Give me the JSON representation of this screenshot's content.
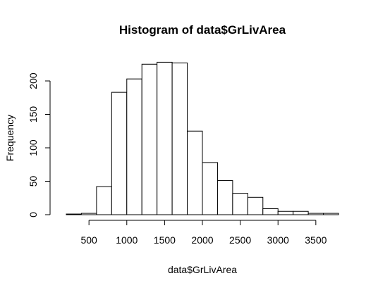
{
  "chart_data": {
    "type": "bar",
    "title": "Histogram of data$GrLivArea",
    "xlabel": "data$GrLivArea",
    "ylabel": "Frequency",
    "bins": [
      {
        "x0": 200,
        "x1": 400,
        "count": 1
      },
      {
        "x0": 400,
        "x1": 600,
        "count": 2
      },
      {
        "x0": 600,
        "x1": 800,
        "count": 42
      },
      {
        "x0": 800,
        "x1": 1000,
        "count": 183
      },
      {
        "x0": 1000,
        "x1": 1200,
        "count": 203
      },
      {
        "x0": 1200,
        "x1": 1400,
        "count": 225
      },
      {
        "x0": 1400,
        "x1": 1600,
        "count": 228
      },
      {
        "x0": 1600,
        "x1": 1800,
        "count": 227
      },
      {
        "x0": 1800,
        "x1": 2000,
        "count": 125
      },
      {
        "x0": 2000,
        "x1": 2200,
        "count": 78
      },
      {
        "x0": 2200,
        "x1": 2400,
        "count": 51
      },
      {
        "x0": 2400,
        "x1": 2600,
        "count": 32
      },
      {
        "x0": 2600,
        "x1": 2800,
        "count": 26
      },
      {
        "x0": 2800,
        "x1": 3000,
        "count": 9
      },
      {
        "x0": 3000,
        "x1": 3200,
        "count": 5
      },
      {
        "x0": 3200,
        "x1": 3400,
        "count": 5
      },
      {
        "x0": 3400,
        "x1": 3600,
        "count": 2
      },
      {
        "x0": 3600,
        "x1": 3800,
        "count": 2
      }
    ],
    "xlim": [
      200,
      3800
    ],
    "ylim": [
      0,
      228
    ],
    "x_ticks": [
      500,
      1000,
      1500,
      2000,
      2500,
      3000,
      3500
    ],
    "x_tick_labels": [
      "500",
      "1000",
      "1500",
      "2000",
      "2500",
      "3000",
      "3500"
    ],
    "y_ticks": [
      0,
      50,
      100,
      150,
      200
    ],
    "y_tick_labels": [
      "0",
      "50",
      "100",
      "150",
      "200"
    ],
    "grid": false,
    "bar_fill": "#ffffff",
    "bar_stroke": "#000000"
  }
}
